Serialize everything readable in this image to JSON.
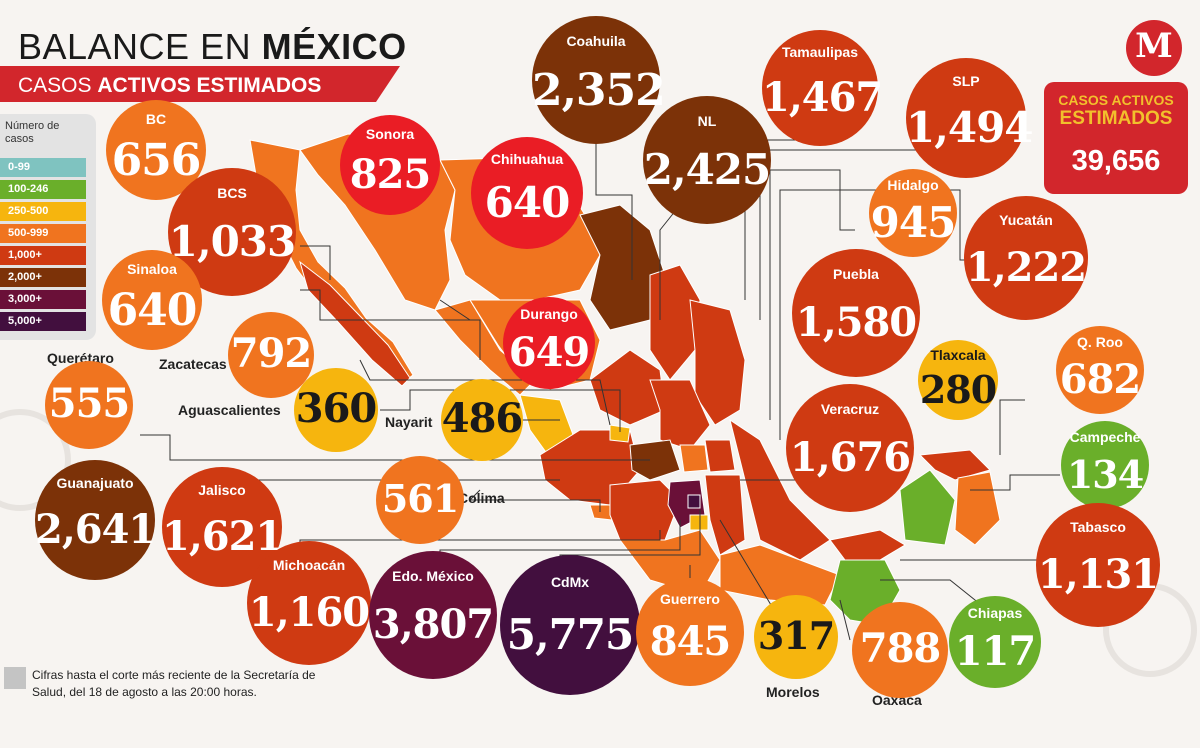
{
  "header": {
    "title_prefix": "BALANCE EN ",
    "title_bold": "MÉXICO",
    "subtitle_prefix": "CASOS ",
    "subtitle_bold": "ACTIVOS ESTIMADOS"
  },
  "legend": {
    "title": "Número de casos",
    "items": [
      {
        "label": "0-99",
        "color": "#7fc3c0"
      },
      {
        "label": "100-246",
        "color": "#6aaf2a"
      },
      {
        "label": "250-500",
        "color": "#f6b50e"
      },
      {
        "label": "500-999",
        "color": "#f0741f"
      },
      {
        "label": "1,000+",
        "color": "#cf3a12"
      },
      {
        "label": "2,000+",
        "color": "#7c3208"
      },
      {
        "label": "3,000+",
        "color": "#6a1038"
      },
      {
        "label": "5,000+",
        "color": "#420f3e"
      }
    ]
  },
  "total": {
    "label_line1": "CASOS ACTIVOS",
    "label_line2": "ESTIMADOS",
    "value": "39,656"
  },
  "logo": {
    "letter": "M"
  },
  "footnote": "Cifras hasta el corte más reciente de la Secretaría de Salud, del 18 de agosto a las 20:00 horas.",
  "states": [
    {
      "name": "BC",
      "value": "656"
    },
    {
      "name": "Sonora",
      "value": "825"
    },
    {
      "name": "Chihuahua",
      "value": "640"
    },
    {
      "name": "Coahuila",
      "value": "2,352"
    },
    {
      "name": "NL",
      "value": "2,425"
    },
    {
      "name": "Tamaulipas",
      "value": "1,467"
    },
    {
      "name": "SLP",
      "value": "1,494"
    },
    {
      "name": "BCS",
      "value": "1,033"
    },
    {
      "name": "Hidalgo",
      "value": "945"
    },
    {
      "name": "Yucatán",
      "value": "1,222"
    },
    {
      "name": "Sinaloa",
      "value": "640"
    },
    {
      "name": "Durango",
      "value": "649"
    },
    {
      "name": "Puebla",
      "value": "1,580"
    },
    {
      "name": "Zacatecas",
      "value": "792"
    },
    {
      "name": "Tlaxcala",
      "value": "280"
    },
    {
      "name": "Q. Roo",
      "value": "682"
    },
    {
      "name": "Querétaro",
      "value": "555"
    },
    {
      "name": "Aguascalientes",
      "value": "360"
    },
    {
      "name": "Nayarit",
      "value": "486"
    },
    {
      "name": "Veracruz",
      "value": "1,676"
    },
    {
      "name": "Campeche",
      "value": "134"
    },
    {
      "name": "Guanajuato",
      "value": "2,641"
    },
    {
      "name": "Jalisco",
      "value": "1,621"
    },
    {
      "name": "Colima",
      "value": "561"
    },
    {
      "name": "Tabasco",
      "value": "1,131"
    },
    {
      "name": "Michoacán",
      "value": "1,160"
    },
    {
      "name": "Edo. México",
      "value": "3,807"
    },
    {
      "name": "CdMx",
      "value": "5,775"
    },
    {
      "name": "Guerrero",
      "value": "845"
    },
    {
      "name": "Morelos",
      "value": "317"
    },
    {
      "name": "Oaxaca",
      "value": "788"
    },
    {
      "name": "Chiapas",
      "value": "117"
    }
  ]
}
